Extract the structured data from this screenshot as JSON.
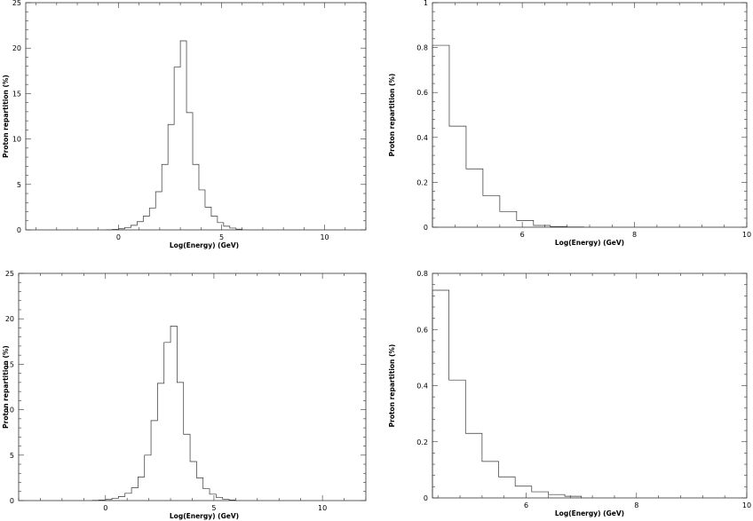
{
  "chart_data": [
    {
      "type": "histogram",
      "panel": "top-left",
      "xlabel": "Log(Energy)  (GeV)",
      "ylabel": "Proton  repartition  (%)",
      "xlim": [
        -4.5,
        12
      ],
      "ylim": [
        0,
        25
      ],
      "x_ticks": [
        0,
        5,
        10
      ],
      "y_ticks": [
        0,
        5,
        10,
        15,
        20,
        25
      ],
      "bin_edges": [
        -0.6,
        -0.3,
        0,
        0.3,
        0.6,
        0.9,
        1.2,
        1.5,
        1.8,
        2.1,
        2.4,
        2.7,
        3.0,
        3.3,
        3.6,
        3.9,
        4.2,
        4.5,
        4.8,
        5.1,
        5.4,
        5.7,
        6.0
      ],
      "values": [
        0.02,
        0.05,
        0.12,
        0.25,
        0.5,
        0.9,
        1.5,
        2.4,
        4.2,
        7.2,
        11.6,
        17.9,
        20.8,
        12.9,
        7.2,
        4.4,
        2.5,
        1.5,
        0.8,
        0.4,
        0.2,
        0.08
      ]
    },
    {
      "type": "histogram",
      "panel": "top-right",
      "xlabel": "Log(Energy)  (GeV)",
      "ylabel": "Proton  repartition  (%)",
      "xlim": [
        4.4,
        10
      ],
      "ylim": [
        0,
        1
      ],
      "x_ticks": [
        6,
        8,
        10
      ],
      "y_ticks": [
        0,
        0.2,
        0.4,
        0.6,
        0.8,
        1
      ],
      "y_tick_labels": [
        "0",
        "0.2",
        "0.4",
        "0.6",
        "0.8",
        "1"
      ],
      "bin_edges": [
        4.4,
        4.7,
        5.0,
        5.3,
        5.6,
        5.9,
        6.2,
        6.5,
        6.8,
        7.1
      ],
      "values": [
        0.81,
        0.45,
        0.26,
        0.14,
        0.07,
        0.03,
        0.008,
        0.003,
        0.001
      ]
    },
    {
      "type": "histogram",
      "panel": "bottom-left",
      "xlabel": "Log(Energy)  (GeV)",
      "ylabel": "Proton  repartition  (%)",
      "xlim": [
        -4,
        12
      ],
      "ylim": [
        0,
        25
      ],
      "x_ticks": [
        0,
        5,
        10
      ],
      "y_ticks": [
        0,
        5,
        10,
        15,
        20,
        25
      ],
      "bin_edges": [
        -0.6,
        -0.3,
        0,
        0.3,
        0.6,
        0.9,
        1.2,
        1.5,
        1.8,
        2.1,
        2.4,
        2.7,
        3.0,
        3.3,
        3.6,
        3.9,
        4.2,
        4.5,
        4.8,
        5.1,
        5.4,
        5.7,
        6.0
      ],
      "values": [
        0.03,
        0.06,
        0.12,
        0.25,
        0.45,
        0.8,
        1.4,
        2.6,
        5.0,
        8.8,
        12.9,
        17.4,
        19.2,
        13.0,
        7.3,
        4.3,
        2.5,
        1.3,
        0.7,
        0.35,
        0.15,
        0.06
      ]
    },
    {
      "type": "histogram",
      "panel": "bottom-right",
      "xlabel": "Log(Energy)  (GeV)",
      "ylabel": "Proton  repartition  (%)",
      "xlim": [
        4.3,
        10
      ],
      "ylim": [
        0,
        0.8
      ],
      "x_ticks": [
        6,
        8,
        10
      ],
      "y_ticks": [
        0,
        0.2,
        0.4,
        0.6,
        0.8
      ],
      "y_tick_labels": [
        "0",
        "0.2",
        "0.4",
        "0.6",
        "0.8"
      ],
      "bin_edges": [
        4.3,
        4.6,
        4.9,
        5.2,
        5.5,
        5.8,
        6.1,
        6.4,
        6.7,
        7.0
      ],
      "values": [
        0.74,
        0.42,
        0.23,
        0.13,
        0.075,
        0.042,
        0.022,
        0.012,
        0.006
      ]
    }
  ]
}
